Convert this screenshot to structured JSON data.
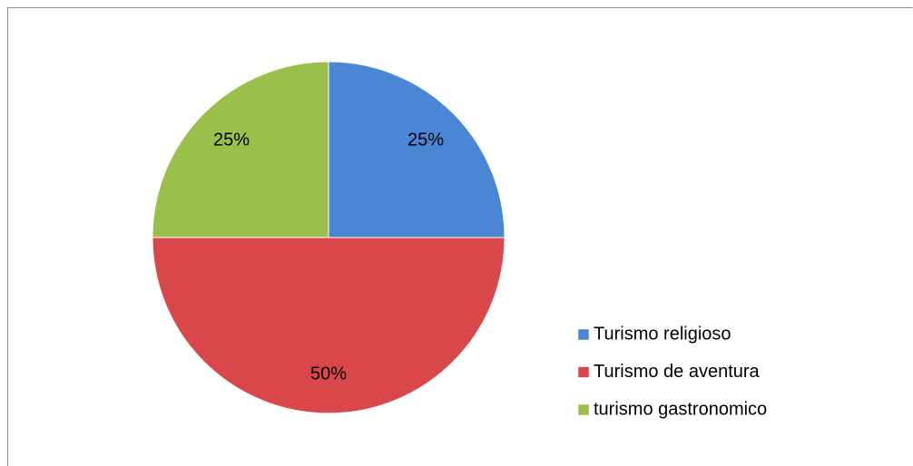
{
  "chart_data": {
    "type": "pie",
    "categories": [
      "Turismo religioso",
      "Turismo de aventura",
      "turismo gastronomico"
    ],
    "values": [
      25,
      50,
      25
    ],
    "value_labels": [
      "25%",
      "50%",
      "25%"
    ],
    "colors": [
      "#4a86d4",
      "#d9474a",
      "#98c04a"
    ],
    "legend": "right"
  }
}
